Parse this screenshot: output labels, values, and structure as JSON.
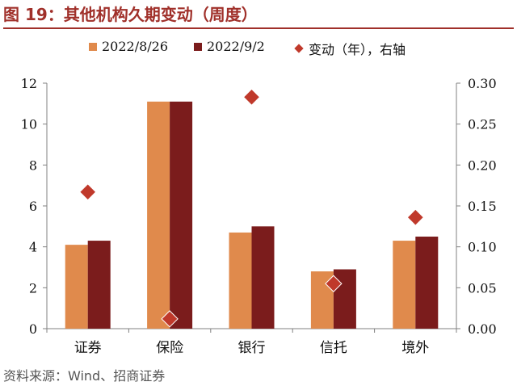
{
  "title": "图 19：其他机构久期变动（周度）",
  "source": "资料来源：Wind、招商证券",
  "legend": [
    {
      "label": "2022/8/26",
      "color": "#e08a4c",
      "shape": "square"
    },
    {
      "label": "2022/9/2",
      "color": "#7b1c1c",
      "shape": "square"
    },
    {
      "label": "变动（年），右轴",
      "color": "#c0392b",
      "shape": "diamond"
    }
  ],
  "chart_data": {
    "type": "bar",
    "categories": [
      "证券",
      "保险",
      "银行",
      "信托",
      "境外"
    ],
    "series": [
      {
        "name": "2022/8/26",
        "axis": "left",
        "type": "bar",
        "color": "#e08a4c",
        "values": [
          4.1,
          11.1,
          4.7,
          2.8,
          4.3
        ]
      },
      {
        "name": "2022/9/2",
        "axis": "left",
        "type": "bar",
        "color": "#7b1c1c",
        "values": [
          4.3,
          11.1,
          5.0,
          2.9,
          4.5
        ]
      },
      {
        "name": "变动（年），右轴",
        "axis": "right",
        "type": "scatter",
        "marker": "diamond",
        "color": "#c0392b",
        "values": [
          0.167,
          0.012,
          0.283,
          0.055,
          0.136
        ]
      }
    ],
    "ylim": [
      0,
      12
    ],
    "yticks": [
      "0",
      "2",
      "4",
      "6",
      "8",
      "10",
      "12"
    ],
    "y2lim": [
      0,
      0.3
    ],
    "y2ticks": [
      "0.00",
      "0.05",
      "0.10",
      "0.15",
      "0.20",
      "0.25",
      "0.30"
    ],
    "grid": false,
    "legend_position": "top"
  }
}
